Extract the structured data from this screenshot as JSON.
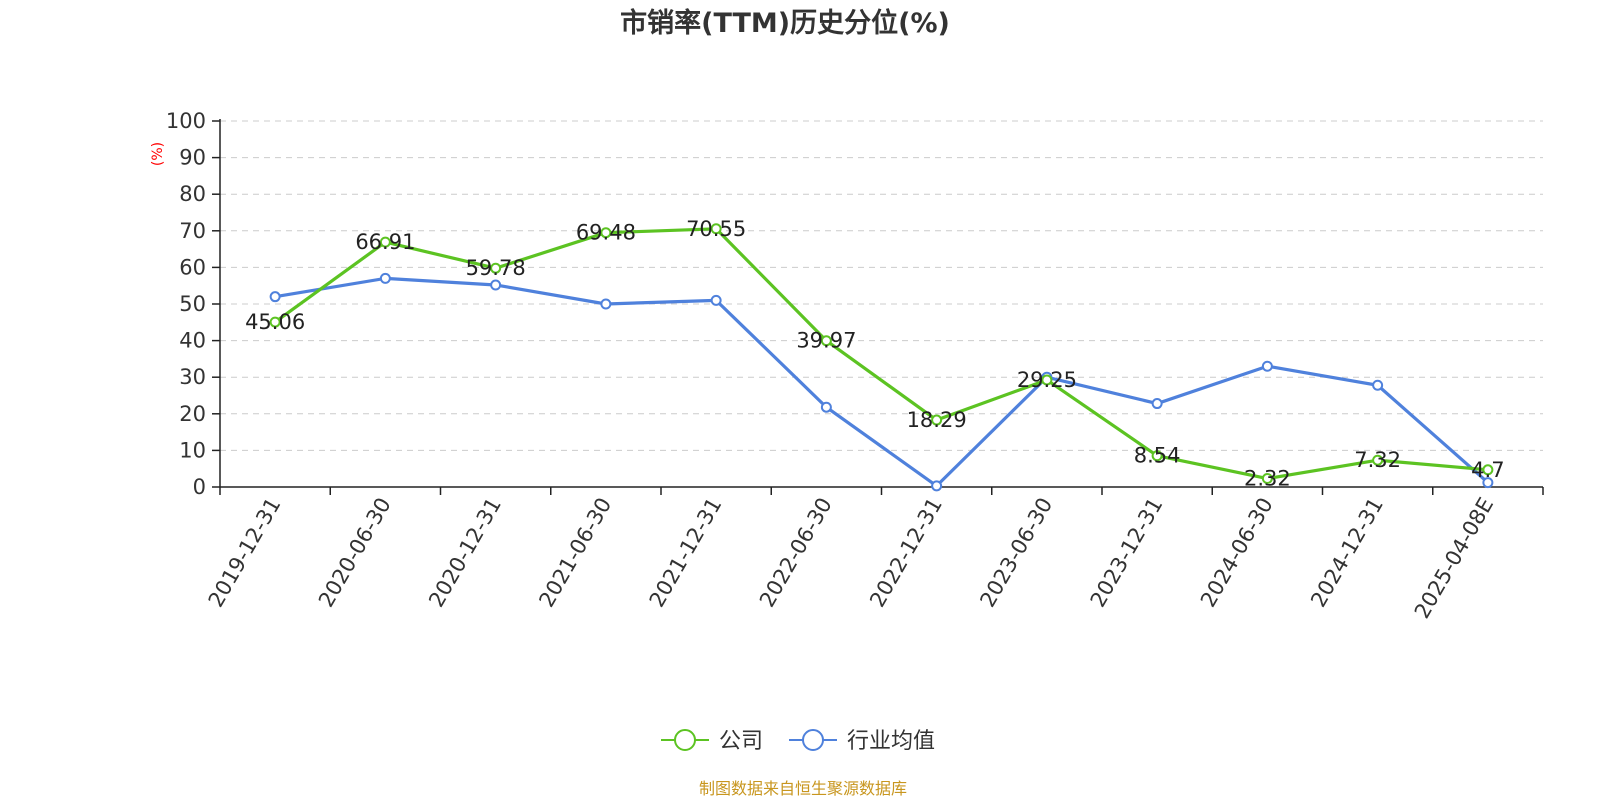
{
  "chart_data": {
    "type": "line",
    "title": "市销率(TTM)历史分位(%)",
    "ylabel": "(%)",
    "ylim": [
      0,
      100
    ],
    "yticks": [
      0,
      10,
      20,
      30,
      40,
      50,
      60,
      70,
      80,
      90,
      100
    ],
    "categories": [
      "2019-12-31",
      "2020-06-30",
      "2020-12-31",
      "2021-06-30",
      "2021-12-31",
      "2022-06-30",
      "2022-12-31",
      "2023-06-30",
      "2023-12-31",
      "2024-06-30",
      "2024-12-31",
      "2025-04-08E"
    ],
    "grid": true,
    "legend_position": "bottom",
    "series": [
      {
        "name": "公司",
        "color": "#5cc322",
        "values": [
          45.06,
          66.91,
          59.78,
          69.48,
          70.55,
          39.97,
          18.29,
          29.25,
          8.54,
          2.32,
          7.32,
          4.7
        ],
        "labels": [
          "45.06",
          "66.91",
          "59.78",
          "69.48",
          "70.55",
          "39.97",
          "18.29",
          "29.25",
          "8.54",
          "2.32",
          "7.32",
          "4.7"
        ]
      },
      {
        "name": "行业均值",
        "color": "#4f81dc",
        "values": [
          52.0,
          57.0,
          55.2,
          50.0,
          51.0,
          21.8,
          0.3,
          30.0,
          22.8,
          33.0,
          27.8,
          1.2
        ]
      }
    ]
  },
  "source_note": "制图数据来自恒生聚源数据库"
}
